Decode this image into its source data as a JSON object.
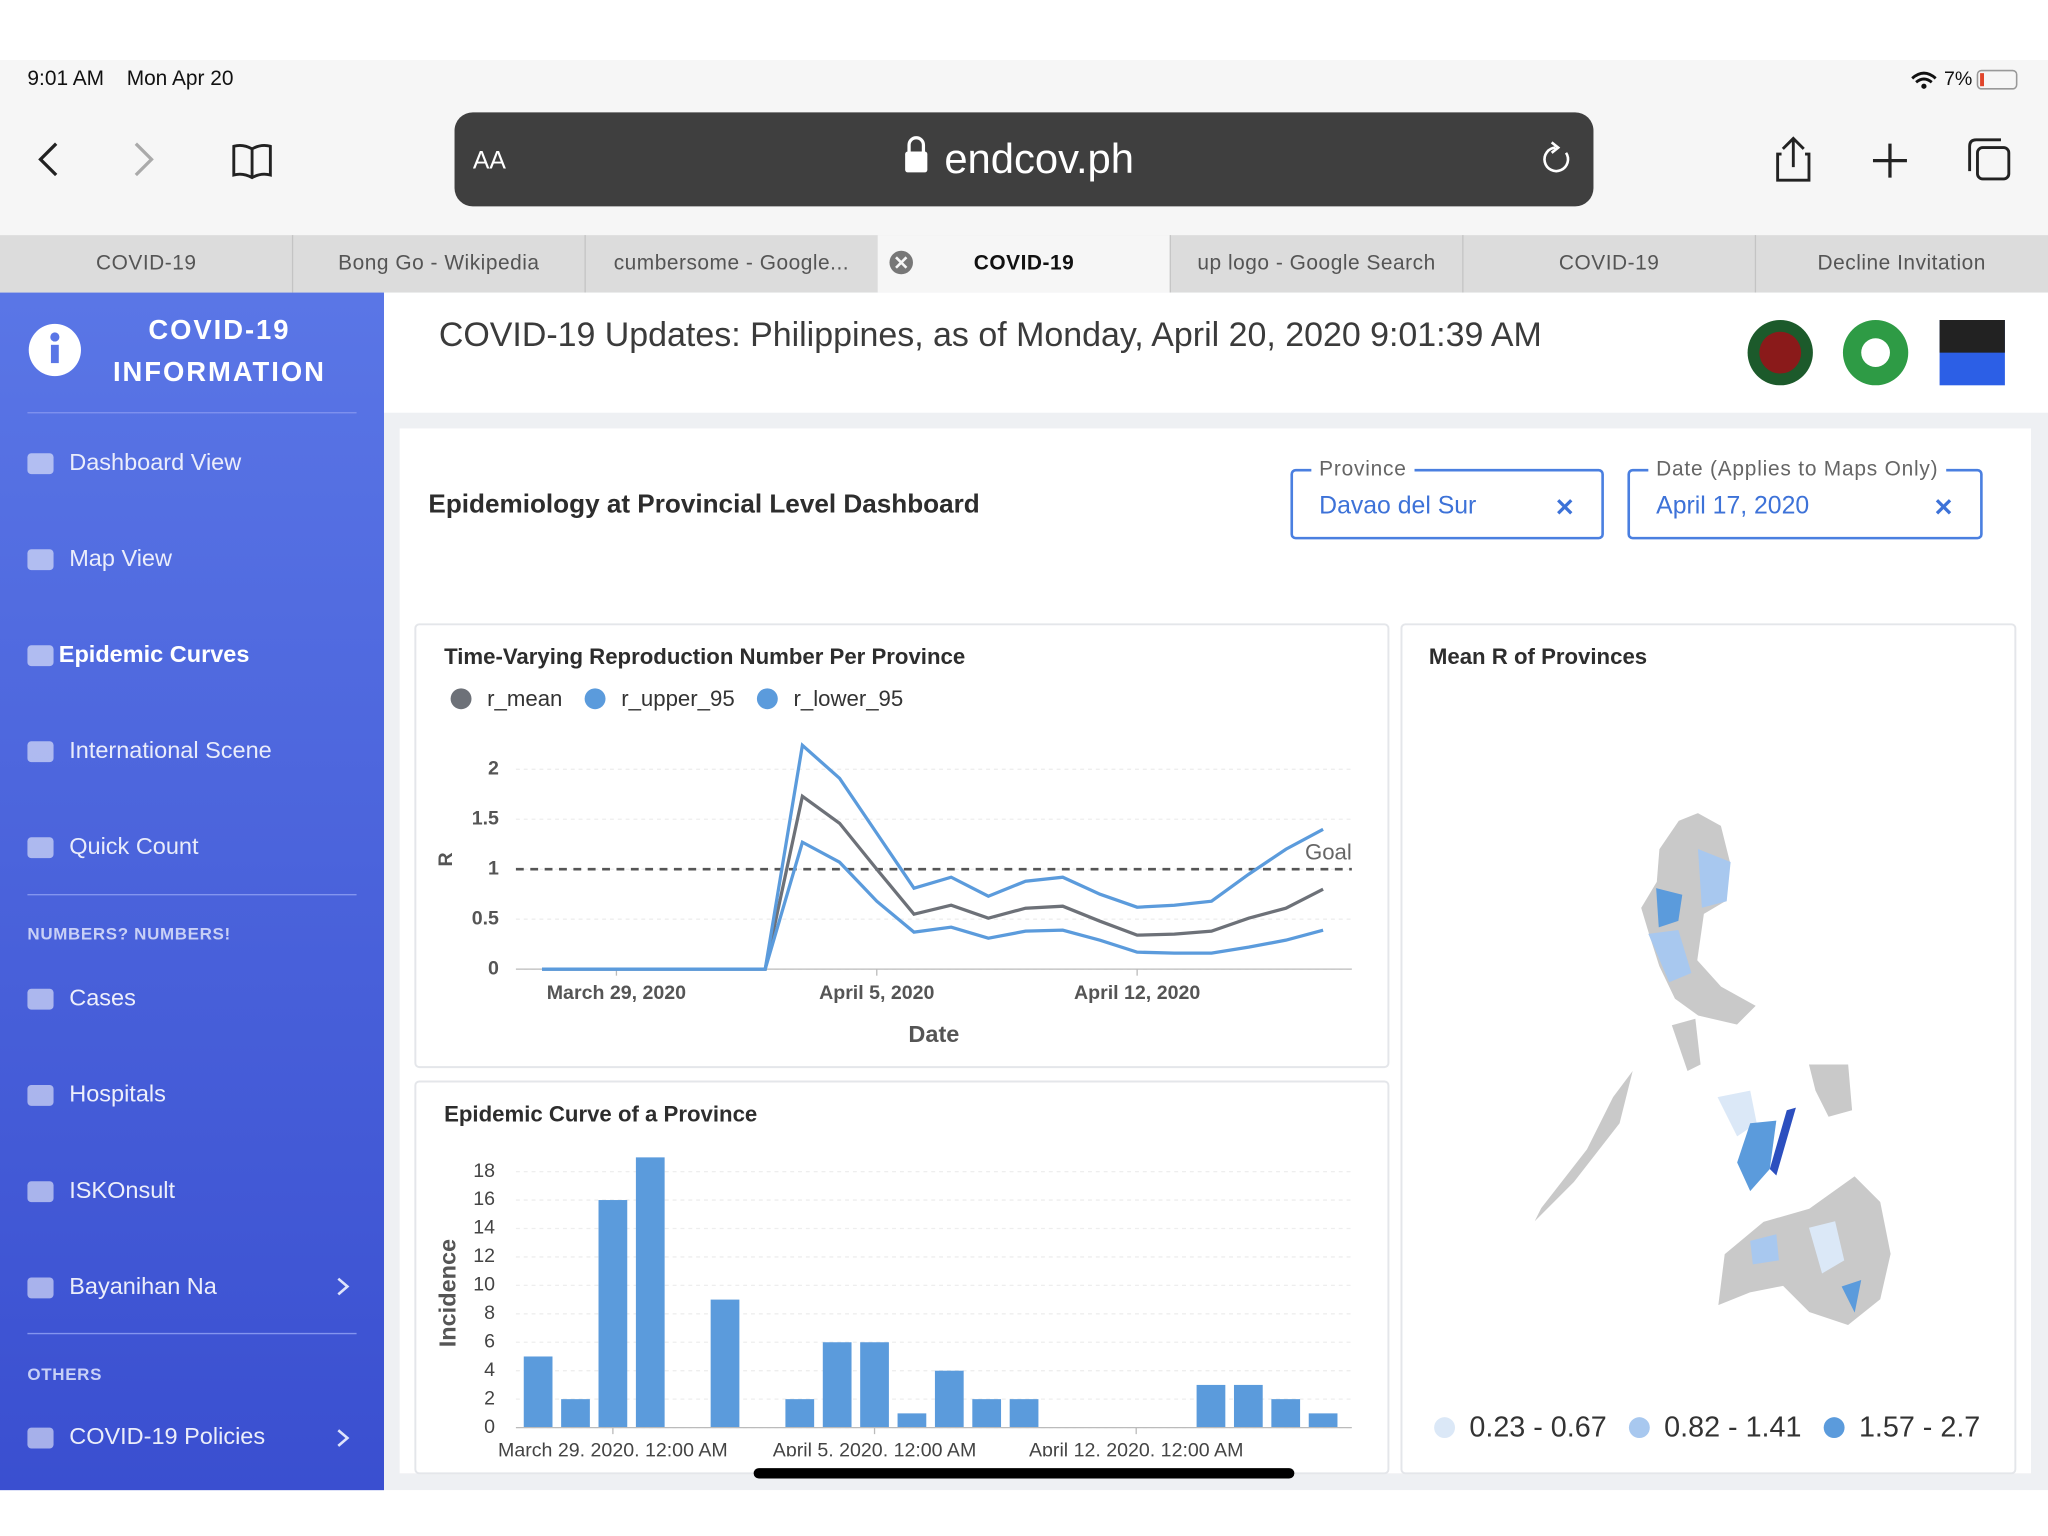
{
  "status": {
    "time": "9:01 AM",
    "date": "Mon Apr 20",
    "battery": "7%"
  },
  "browser": {
    "reader": "AA",
    "url": "endcov.ph"
  },
  "tabs": {
    "items": [
      "COVID-19",
      "Bong Go - Wikipedia",
      "cumbersome - Google...",
      "COVID-19",
      "up logo - Google Search",
      "COVID-19",
      "Decline Invitation"
    ],
    "active": 3
  },
  "sidebar": {
    "title": [
      "COVID-19",
      "INFORMATION"
    ],
    "main": [
      "Dashboard View",
      "Map View",
      "Epidemic Curves",
      "International Scene",
      "Quick Count"
    ],
    "active": 2,
    "sections": [
      {
        "heading": "NUMBERS? NUMBERS!",
        "items": [
          "Cases",
          "Hospitals",
          "ISKOnsult",
          "Bayanihan Na"
        ]
      },
      {
        "heading": "OTHERS",
        "items": [
          "COVID-19 Policies"
        ]
      }
    ]
  },
  "header": {
    "title": "COVID-19 Updates: Philippines, as of Monday, April 20, 2020 9:01:39 AM"
  },
  "dashboard": {
    "title": "Epidemiology at Provincial Level Dashboard",
    "filters": [
      {
        "label": "Province",
        "value": "Davao del Sur"
      },
      {
        "label": "Date (Applies to Maps Only)",
        "value": "April 17, 2020"
      }
    ]
  },
  "chart_data": [
    {
      "type": "line",
      "title": "Time-Varying Reproduction Number Per Province",
      "x_label": "Date",
      "y_label": "R",
      "x": [
        "2020-03-27",
        "2020-03-28",
        "2020-03-29",
        "2020-03-30",
        "2020-03-31",
        "2020-04-01",
        "2020-04-02",
        "2020-04-03",
        "2020-04-04",
        "2020-04-05",
        "2020-04-06",
        "2020-04-07",
        "2020-04-08",
        "2020-04-09",
        "2020-04-10",
        "2020-04-11",
        "2020-04-12",
        "2020-04-13",
        "2020-04-14",
        "2020-04-15",
        "2020-04-16",
        "2020-04-17"
      ],
      "xticks": [
        {
          "value": "2020-03-29",
          "label": "March 29, 2020"
        },
        {
          "value": "2020-04-05",
          "label": "April 5, 2020"
        },
        {
          "value": "2020-04-12",
          "label": "April 12, 2020"
        }
      ],
      "ylim": [
        0,
        2.3
      ],
      "yticks": [
        0,
        0.5,
        1,
        1.5,
        2
      ],
      "grid": true,
      "reference": {
        "value": 1,
        "label": "Goal"
      },
      "series": [
        {
          "name": "r_mean",
          "color": "#6d7178",
          "values": [
            0,
            0,
            0,
            0,
            0,
            0,
            0,
            1.73,
            1.46,
            1.0,
            0.55,
            0.64,
            0.51,
            0.61,
            0.63,
            0.48,
            0.34,
            0.35,
            0.38,
            0.51,
            0.61,
            0.8
          ]
        },
        {
          "name": "r_upper_95",
          "color": "#5b9bdc",
          "values": [
            0,
            0,
            0,
            0,
            0,
            0,
            0,
            2.24,
            1.91,
            1.36,
            0.81,
            0.92,
            0.73,
            0.88,
            0.92,
            0.75,
            0.62,
            0.64,
            0.68,
            0.95,
            1.2,
            1.4
          ]
        },
        {
          "name": "r_lower_95",
          "color": "#5b9bdc",
          "values": [
            0,
            0,
            0,
            0,
            0,
            0,
            0,
            1.27,
            1.07,
            0.68,
            0.37,
            0.42,
            0.31,
            0.38,
            0.39,
            0.29,
            0.17,
            0.16,
            0.16,
            0.22,
            0.29,
            0.39
          ]
        }
      ]
    },
    {
      "type": "bar",
      "title": "Epidemic Curve of a Province",
      "y_label": "Incidence",
      "x": [
        "2020-03-27",
        "2020-03-28",
        "2020-03-29",
        "2020-03-30",
        "2020-03-31",
        "2020-04-01",
        "2020-04-02",
        "2020-04-03",
        "2020-04-04",
        "2020-04-05",
        "2020-04-06",
        "2020-04-07",
        "2020-04-08",
        "2020-04-09",
        "2020-04-10",
        "2020-04-11",
        "2020-04-12",
        "2020-04-13",
        "2020-04-14",
        "2020-04-15",
        "2020-04-16",
        "2020-04-17"
      ],
      "values": [
        5,
        2,
        16,
        19,
        0,
        9,
        0,
        2,
        6,
        6,
        1,
        4,
        2,
        2,
        0,
        0,
        0,
        0,
        3,
        3,
        2,
        1
      ],
      "color": "#5b9bdc",
      "xticks": [
        {
          "value": "2020-03-29",
          "label": "March 29, 2020, 12:00 AM"
        },
        {
          "value": "2020-04-05",
          "label": "April 5, 2020, 12:00 AM"
        },
        {
          "value": "2020-04-12",
          "label": "April 12, 2020, 12:00 AM"
        }
      ],
      "ylim": [
        0,
        19
      ],
      "yticks": [
        0,
        2,
        4,
        6,
        8,
        10,
        12,
        14,
        16,
        18
      ],
      "grid": true
    },
    {
      "type": "map",
      "title": "Mean R of Provinces",
      "legend": [
        {
          "label": "0.23 - 0.67",
          "color": "#dbe8f7"
        },
        {
          "label": "0.82 - 1.41",
          "color": "#a8c8ef"
        },
        {
          "label": "1.57 - 2.7",
          "color": "#5b9bdc"
        }
      ]
    }
  ]
}
